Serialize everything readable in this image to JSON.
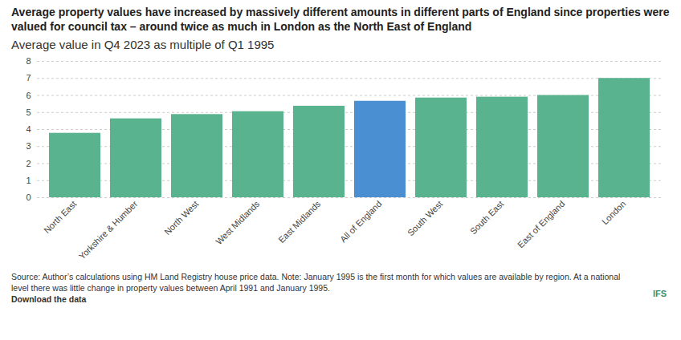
{
  "chart_data": {
    "type": "bar",
    "title": "Average property values have increased by massively different amounts in different parts of England since properties were valued for council tax – around twice as much in London as the North East of England",
    "subtitle": "Average value in Q4 2023 as multiple of Q1 1995",
    "caption": "Source: Author’s calculations using HM Land Registry house price data. Note: January 1995 is the first month for which values are available by region. At a national level there was little change in property values between April 1991 and January 1995.",
    "download_text": "Download the data",
    "logo": "IFS",
    "categories": [
      "North East",
      "Yorkshire & Humber",
      "North West",
      "West Midlands",
      "East Midlands",
      "All of England",
      "South West",
      "South East",
      "East of England",
      "London"
    ],
    "values": [
      3.78,
      4.63,
      4.88,
      5.05,
      5.37,
      5.66,
      5.85,
      5.9,
      6.0,
      7.0
    ],
    "colors": [
      "#59b38f",
      "#59b38f",
      "#59b38f",
      "#59b38f",
      "#59b38f",
      "#4a8fd1",
      "#59b38f",
      "#59b38f",
      "#59b38f",
      "#59b38f"
    ],
    "ylim": [
      0,
      8
    ],
    "yticks": [
      0,
      1,
      2,
      3,
      4,
      5,
      6,
      7,
      8
    ],
    "grid": true
  }
}
